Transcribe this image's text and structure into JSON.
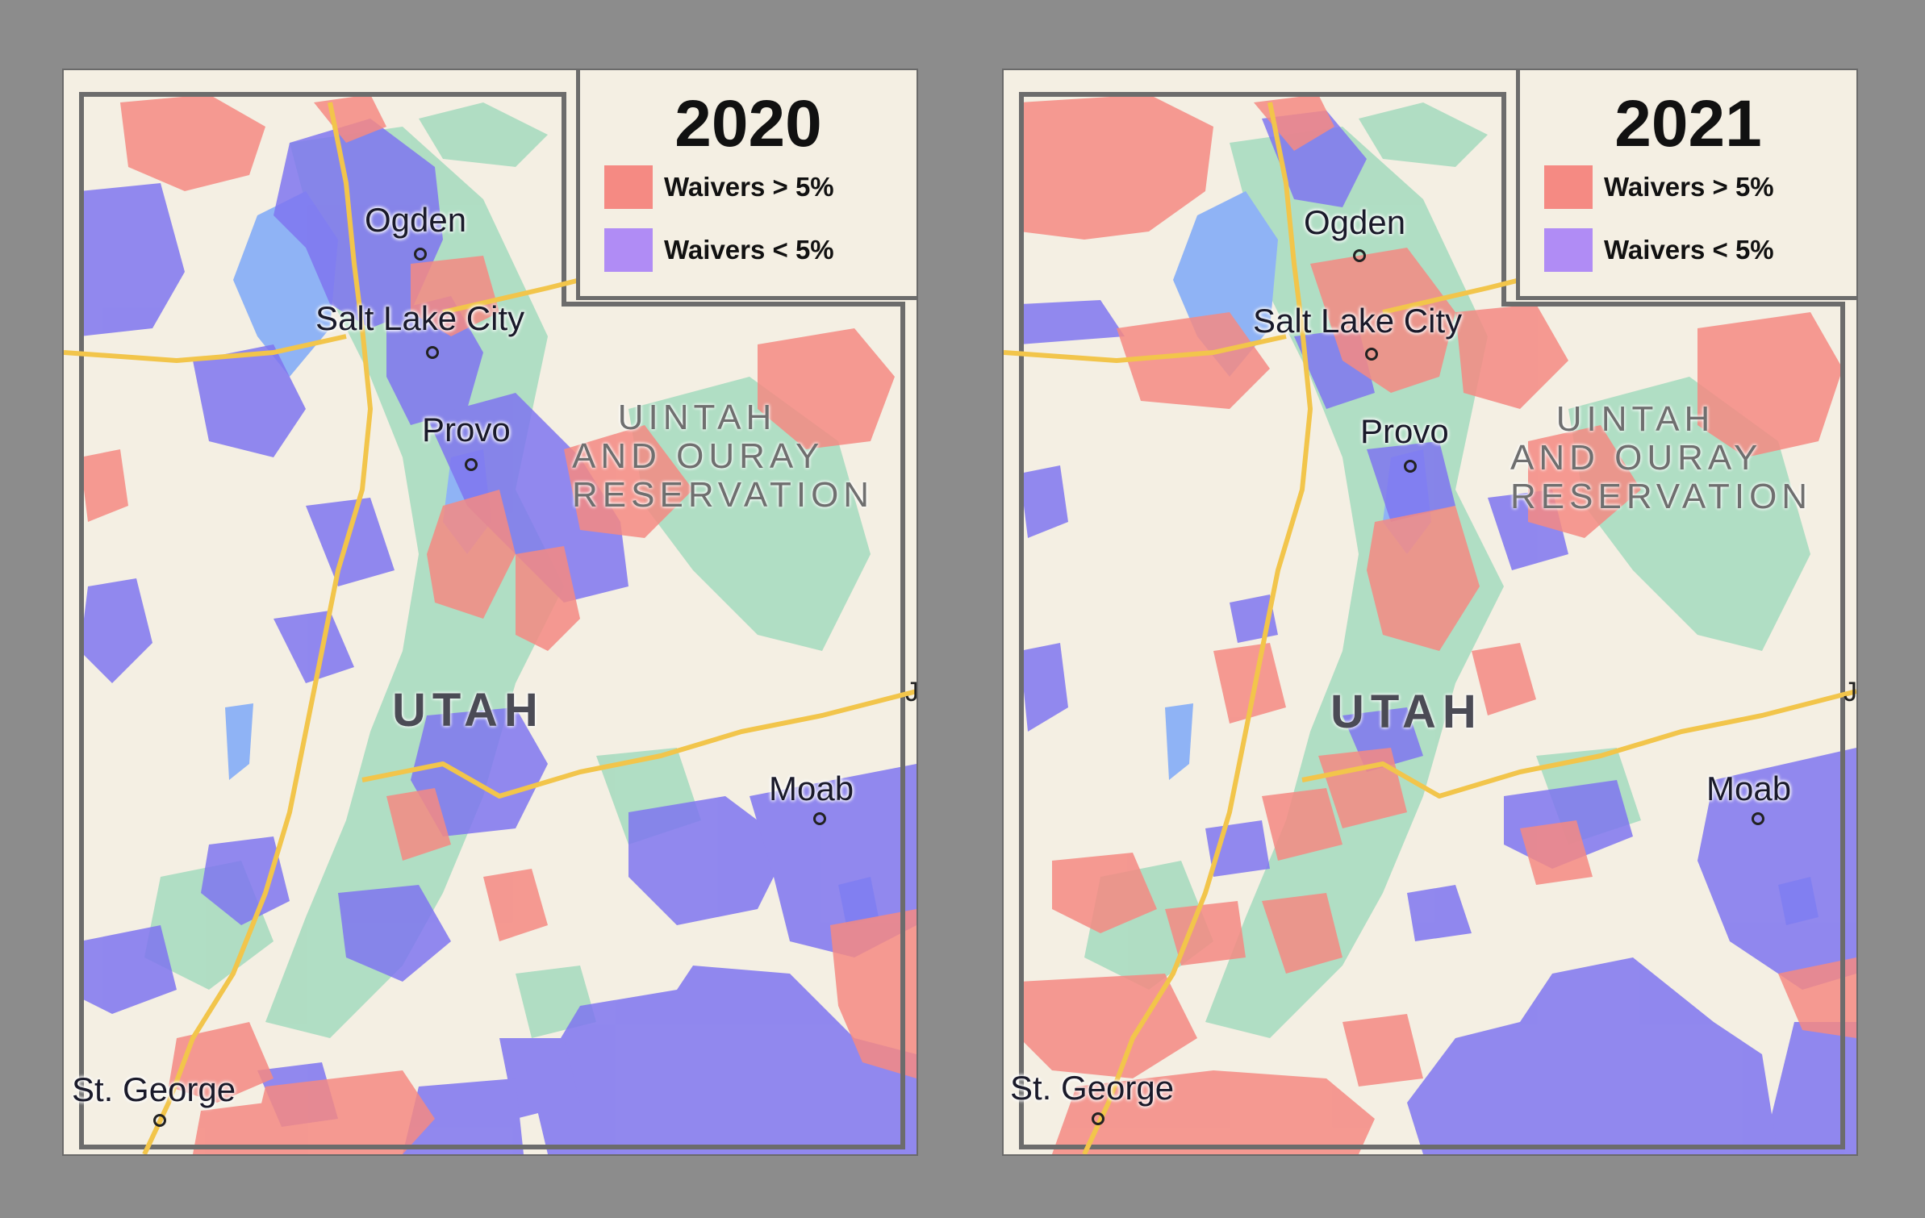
{
  "colors": {
    "background": "#8c8c8c",
    "map_land": "#f4efe3",
    "waivers_above": "#f58a83",
    "waivers_below": "#7f75f0",
    "forest": "#a9dcc0",
    "water": "#8fb3f5",
    "highway": "#f2c54b",
    "border": "#6c6c6c"
  },
  "panels": [
    {
      "year": "2020",
      "legend": {
        "above_label": "Waivers > 5%",
        "below_label": "Waivers < 5%"
      }
    },
    {
      "year": "2021",
      "legend": {
        "above_label": "Waivers > 5%",
        "below_label": "Waivers < 5%"
      }
    }
  ],
  "map_labels": {
    "cities": [
      "Ogden",
      "Salt Lake City",
      "Provo",
      "Moab",
      "St. George"
    ],
    "region_line1": "UINTAH",
    "region_line2": "AND OURAY",
    "region_line3": "RESERVATION",
    "state": "UTAH",
    "edge_letter": "J"
  }
}
